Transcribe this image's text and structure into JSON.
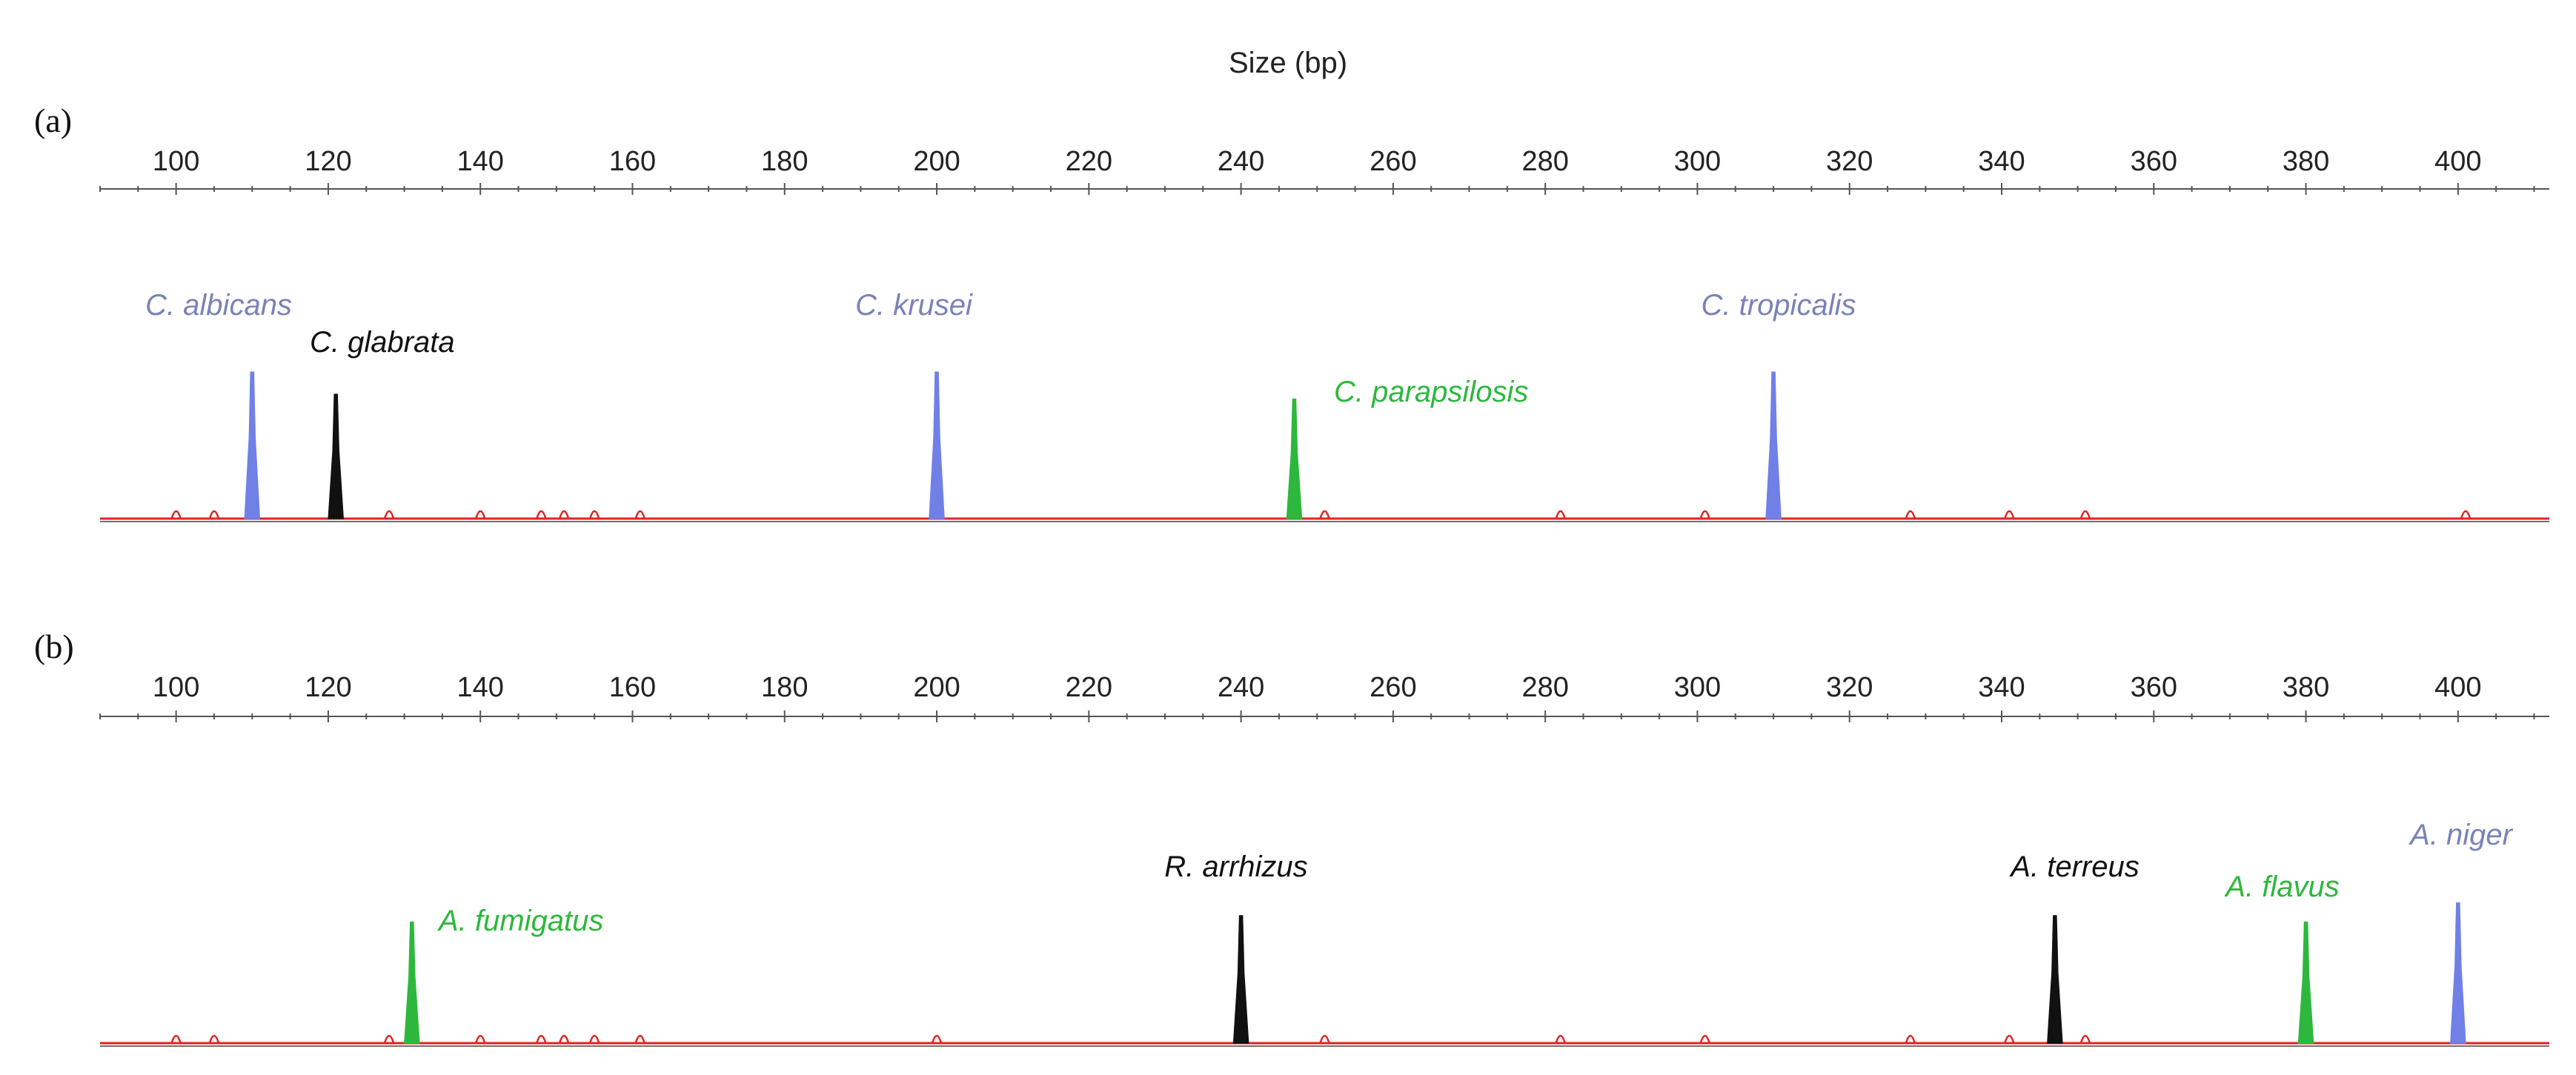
{
  "chart_data": {
    "type": "electropherogram",
    "title": "Size (bp)",
    "xlabel": "Size (bp)",
    "xlim": [
      90,
      412
    ],
    "ticks": [
      100,
      120,
      140,
      160,
      180,
      200,
      220,
      240,
      260,
      280,
      300,
      320,
      340,
      360,
      380,
      400
    ],
    "colors": {
      "blue": "#7080e6",
      "black": "#111111",
      "green": "#2db83d",
      "red": "#e02222",
      "label_blue": "#7a82b8"
    },
    "panels": [
      {
        "panel_label": "(a)",
        "baseline_color": "red",
        "peaks": [
          {
            "label": "C. albicans",
            "size": 110,
            "height": 0.92,
            "color": "blue",
            "label_color": "label_blue"
          },
          {
            "label": "C. glabrata",
            "size": 121,
            "height": 0.78,
            "color": "black",
            "label_color": "black"
          },
          {
            "label": "C. krusei",
            "size": 200,
            "height": 0.92,
            "color": "blue",
            "label_color": "label_blue"
          },
          {
            "label": "C. parapsilosis",
            "size": 247,
            "height": 0.75,
            "color": "green",
            "label_color": "green"
          },
          {
            "label": "C. tropicalis",
            "size": 310,
            "height": 0.92,
            "color": "blue",
            "label_color": "label_blue"
          }
        ],
        "noise": [
          100,
          105,
          128,
          140,
          148,
          151,
          155,
          161,
          251,
          282,
          301,
          328,
          341,
          351,
          401
        ]
      },
      {
        "panel_label": "(b)",
        "baseline_color": "red",
        "peaks": [
          {
            "label": "A. fumigatus",
            "size": 131,
            "height": 0.76,
            "color": "green",
            "label_color": "green"
          },
          {
            "label": "R. arrhizus",
            "size": 240,
            "height": 0.8,
            "color": "black",
            "label_color": "black"
          },
          {
            "label": "A. terreus",
            "size": 347,
            "height": 0.8,
            "color": "black",
            "label_color": "black"
          },
          {
            "label": "A. flavus",
            "size": 380,
            "height": 0.76,
            "color": "green",
            "label_color": "green"
          },
          {
            "label": "A. niger",
            "size": 400,
            "height": 0.88,
            "color": "blue",
            "label_color": "label_blue"
          }
        ],
        "noise": [
          100,
          105,
          128,
          140,
          148,
          151,
          155,
          161,
          200,
          251,
          282,
          301,
          328,
          341,
          351
        ]
      }
    ]
  }
}
